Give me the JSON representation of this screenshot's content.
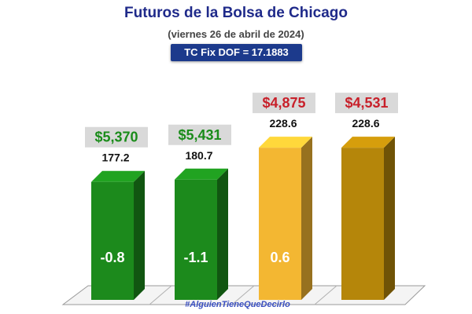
{
  "header": {
    "title": "Futuros de la Bolsa de Chicago",
    "subtitle": "(viernes 26 de abril de 2024)",
    "fx_badge": "TC Fix DOF = 17.1883"
  },
  "watermark": "#AlguienTieneQueDecirlo",
  "colors": {
    "green": "#1c8a1c",
    "gold_light": "#f3b732",
    "gold_dark": "#b5860a",
    "price_green": "#1a8c1a",
    "price_red": "#c8202a",
    "label_bg": "#d9d9d9"
  },
  "chart_data": {
    "type": "bar",
    "title": "Futuros de la Bolsa de Chicago",
    "ylim": [
      0,
      250
    ],
    "bars": [
      {
        "value": 177.2,
        "value_label": "177.2",
        "price": "$5,370",
        "change": "-0.8",
        "color_key": "green",
        "price_color_key": "price_green"
      },
      {
        "value": 180.7,
        "value_label": "180.7",
        "price": "$5,431",
        "change": "-1.1",
        "color_key": "green",
        "price_color_key": "price_green"
      },
      {
        "value": 228.6,
        "value_label": "228.6",
        "price": "$4,875",
        "change": "0.6",
        "color_key": "gold_light",
        "price_color_key": "price_red"
      },
      {
        "value": 228.6,
        "value_label": "228.6",
        "price": "$4,531",
        "change": "",
        "color_key": "gold_dark",
        "price_color_key": "price_red"
      }
    ]
  }
}
